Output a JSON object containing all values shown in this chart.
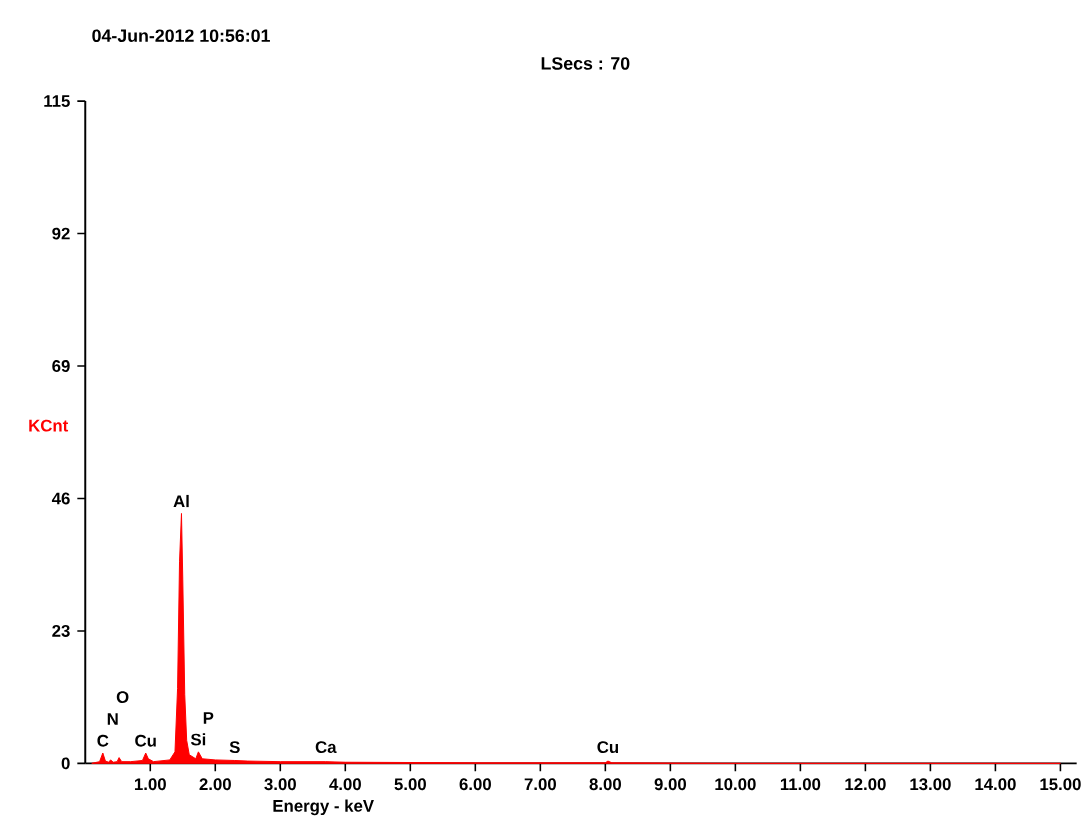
{
  "chart_data": {
    "type": "area",
    "title": "04-Jun-2012 10:56:01",
    "subtitle": "LSecs :  70",
    "xlabel": "Energy - keV",
    "ylabel": "KCnt",
    "series": [
      {
        "color": "#ff0000",
        "x": [
          0.1,
          0.22,
          0.27,
          0.31,
          0.36,
          0.39,
          0.43,
          0.49,
          0.52,
          0.56,
          0.7,
          0.88,
          0.93,
          0.97,
          1.05,
          1.3,
          1.38,
          1.42,
          1.45,
          1.48,
          1.5,
          1.53,
          1.56,
          1.6,
          1.7,
          1.74,
          1.8,
          2.0,
          2.3,
          2.5,
          3.0,
          3.7,
          4.0,
          6.0,
          8.0,
          8.04,
          8.1,
          10.0,
          15.0
        ],
        "values": [
          0,
          0.3,
          1.8,
          0.4,
          0.2,
          0.6,
          0.2,
          0.3,
          1.0,
          0.3,
          0.3,
          0.5,
          1.8,
          0.8,
          0.3,
          0.6,
          2,
          13,
          35,
          43.4,
          32,
          12,
          4,
          1.5,
          0.8,
          2,
          0.8,
          0.6,
          0.5,
          0.4,
          0.3,
          0.3,
          0.2,
          0.1,
          0.1,
          0.4,
          0.1,
          0,
          0
        ]
      }
    ],
    "xlim": [
      0,
      15.25
    ],
    "ylim": [
      0,
      115
    ],
    "xticks": [
      {
        "value": 1,
        "label": "1.00"
      },
      {
        "value": 2,
        "label": "2.00"
      },
      {
        "value": 3,
        "label": "3.00"
      },
      {
        "value": 4,
        "label": "4.00"
      },
      {
        "value": 5,
        "label": "5.00"
      },
      {
        "value": 6,
        "label": "6.00"
      },
      {
        "value": 7,
        "label": "7.00"
      },
      {
        "value": 8,
        "label": "8.00"
      },
      {
        "value": 9,
        "label": "9.00"
      },
      {
        "value": 10,
        "label": "10.00"
      },
      {
        "value": 11,
        "label": "11.00"
      },
      {
        "value": 12,
        "label": "12.00"
      },
      {
        "value": 13,
        "label": "13.00"
      },
      {
        "value": 14,
        "label": "14.00"
      },
      {
        "value": 15,
        "label": "15.00"
      }
    ],
    "yticks": [
      0,
      23,
      46,
      69,
      92,
      115
    ],
    "grid": false,
    "annotations": [
      {
        "text": "C",
        "x": 0.27,
        "y": 1.8
      },
      "N",
      "O",
      {
        "text": "Cu",
        "x": 0.93,
        "y": 1.8
      },
      {
        "text": "Al",
        "x": 1.48,
        "y": 43.4
      },
      {
        "text": "Si",
        "x": 1.74,
        "y": 2
      },
      "P",
      {
        "text": "S",
        "x": 2.3,
        "y": 0.5
      },
      {
        "text": "Ca",
        "x": 3.7,
        "y": 0.3
      },
      {
        "text": "Cu",
        "x": 8.04,
        "y": 0.4
      }
    ]
  }
}
